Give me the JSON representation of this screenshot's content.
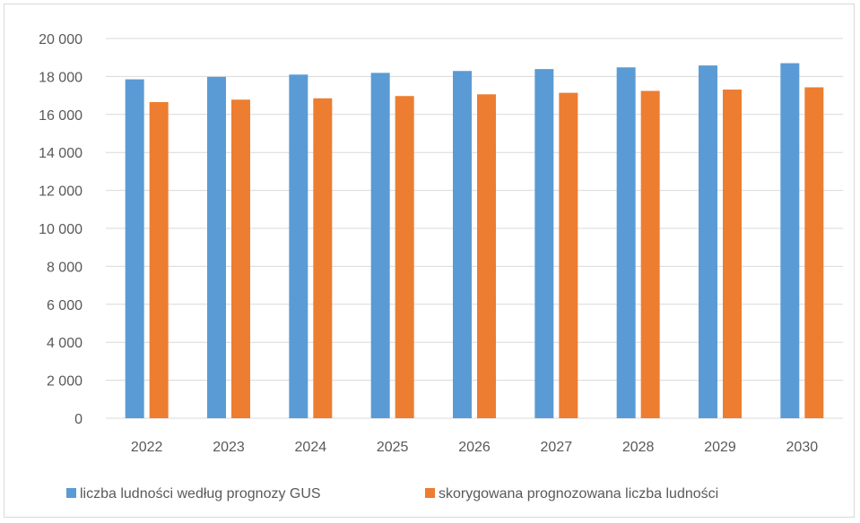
{
  "chart_data": {
    "type": "bar",
    "categories": [
      "2022",
      "2023",
      "2024",
      "2025",
      "2026",
      "2027",
      "2028",
      "2029",
      "2030"
    ],
    "series": [
      {
        "name": "liczba ludności według prognozy GUS",
        "color": "#5b9bd5",
        "values": [
          17850,
          17980,
          18100,
          18190,
          18290,
          18390,
          18480,
          18580,
          18700
        ]
      },
      {
        "name": "skorygowana prognozowana liczba ludności",
        "color": "#ed7d31",
        "values": [
          16650,
          16780,
          16850,
          16970,
          17060,
          17140,
          17240,
          17310,
          17430
        ]
      }
    ],
    "title": "",
    "xlabel": "",
    "ylabel": "",
    "ylim": [
      0,
      20000
    ],
    "yticks": [
      "0",
      "2 000",
      "4 000",
      "6 000",
      "8 000",
      "10 000",
      "12 000",
      "14 000",
      "16 000",
      "18 000",
      "20 000"
    ],
    "grid": true,
    "legend_position": "bottom"
  }
}
